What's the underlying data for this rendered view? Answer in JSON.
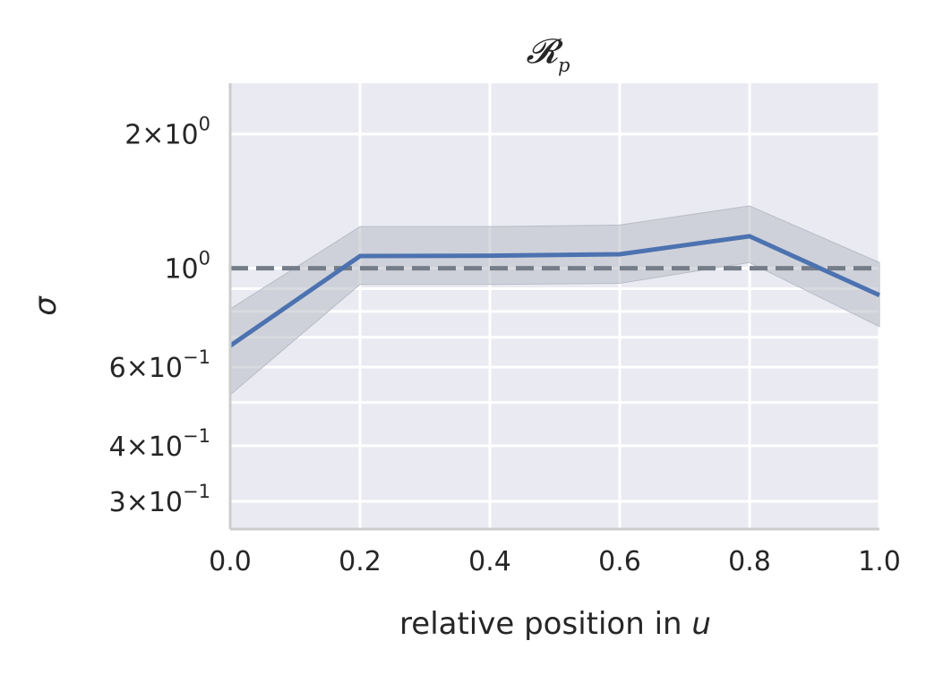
{
  "chart_data": {
    "type": "line",
    "title": "𝓡",
    "title_subscript": "p",
    "xlabel": "relative position in ",
    "xlabel_var": "u",
    "ylabel": "σ",
    "yscale": "log",
    "xlim": [
      0.0,
      1.0
    ],
    "ylim": [
      0.26,
      2.6
    ],
    "grid": true,
    "background": "#eaeaf2",
    "x": [
      0.0,
      0.2,
      0.4,
      0.6,
      0.8,
      1.0
    ],
    "series": [
      {
        "values": [
          0.67,
          1.065,
          1.067,
          1.075,
          1.18,
          0.87
        ],
        "lower": [
          0.52,
          0.92,
          0.92,
          0.925,
          1.03,
          0.74
        ],
        "upper": [
          0.81,
          1.24,
          1.24,
          1.25,
          1.38,
          1.03
        ],
        "color": "#4c72b0",
        "band_color": "#b8bcc6"
      }
    ],
    "reference_line": {
      "y": 1.0,
      "style": "dashed",
      "color": "#747d88"
    },
    "x_ticks": [
      {
        "value": 0.0,
        "label": "0.0"
      },
      {
        "value": 0.2,
        "label": "0.2"
      },
      {
        "value": 0.4,
        "label": "0.4"
      },
      {
        "value": 0.6,
        "label": "0.6"
      },
      {
        "value": 0.8,
        "label": "0.8"
      },
      {
        "value": 1.0,
        "label": "1.0"
      }
    ],
    "y_major_ticks": [
      {
        "value": 1.0,
        "label": "10",
        "exp": "0"
      }
    ],
    "y_minor_ticks": [
      {
        "value": 0.3,
        "label": "3×10",
        "exp": "−1"
      },
      {
        "value": 0.4,
        "label": "4×10",
        "exp": "−1"
      },
      {
        "value": 0.5,
        "label": "",
        "exp": ""
      },
      {
        "value": 0.6,
        "label": "6×10",
        "exp": "−1"
      },
      {
        "value": 0.7,
        "label": "",
        "exp": ""
      },
      {
        "value": 0.8,
        "label": "",
        "exp": ""
      },
      {
        "value": 0.9,
        "label": "",
        "exp": ""
      },
      {
        "value": 2.0,
        "label": "2×10",
        "exp": "0"
      }
    ]
  }
}
